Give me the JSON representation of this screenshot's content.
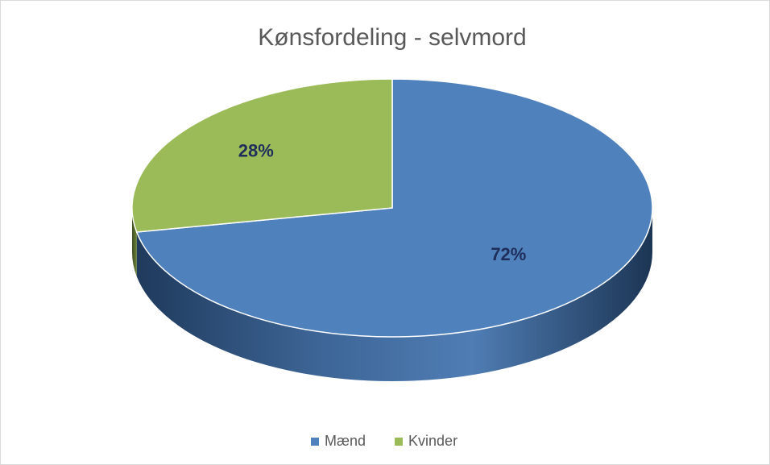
{
  "chart_data": {
    "type": "pie",
    "title": "Kønsfordeling - selvmord",
    "categories": [
      "Mænd",
      "Kvinder"
    ],
    "values": [
      72,
      28
    ],
    "value_labels": [
      "72%",
      "28%"
    ],
    "colors": [
      "#4f81bd",
      "#9bbb59"
    ],
    "legend": "bottom"
  }
}
